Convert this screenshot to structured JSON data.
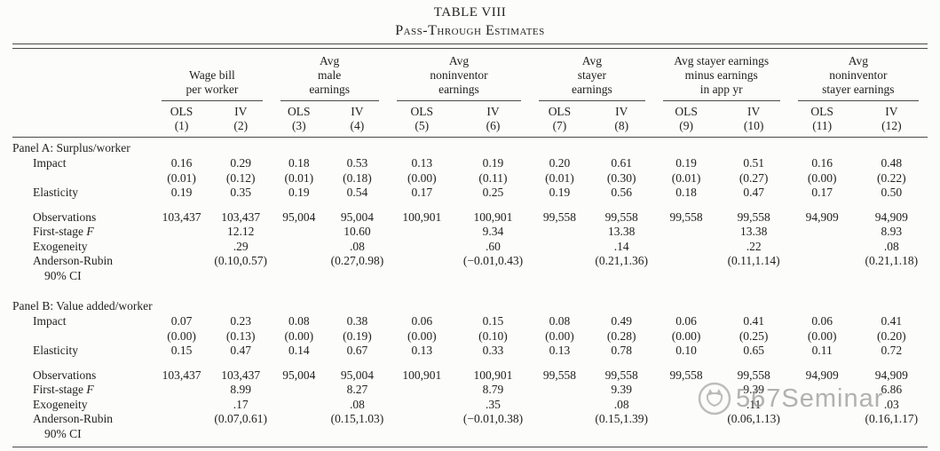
{
  "title": "TABLE VIII",
  "subtitle": "Pass-Through Estimates",
  "watermark": {
    "text": "567Seminar",
    "logo": "cat-circle-icon",
    "color": "#949494"
  },
  "table": {
    "col_groups": [
      {
        "title": "Wage bill\nper worker"
      },
      {
        "title": "Avg\nmale\nearnings"
      },
      {
        "title": "Avg\nnoninventor\nearnings"
      },
      {
        "title": "Avg\nstayer\nearnings"
      },
      {
        "title": "Avg stayer earnings\nminus earnings\nin app yr"
      },
      {
        "title": "Avg\nnoninventor\nstayer earnings"
      }
    ],
    "method_headers": [
      "OLS",
      "IV",
      "OLS",
      "IV",
      "OLS",
      "IV",
      "OLS",
      "IV",
      "OLS",
      "IV",
      "OLS",
      "IV"
    ],
    "column_numbers": [
      "(1)",
      "(2)",
      "(3)",
      "(4)",
      "(5)",
      "(6)",
      "(7)",
      "(8)",
      "(9)",
      "(10)",
      "(11)",
      "(12)"
    ],
    "panels": [
      {
        "title": "Panel A: Surplus/worker",
        "rows": [
          {
            "label": "Impact",
            "values": [
              "0.16",
              "0.29",
              "0.18",
              "0.53",
              "0.13",
              "0.19",
              "0.20",
              "0.61",
              "0.19",
              "0.51",
              "0.16",
              "0.48"
            ]
          },
          {
            "label": "",
            "values": [
              "(0.01)",
              "(0.12)",
              "(0.01)",
              "(0.18)",
              "(0.00)",
              "(0.11)",
              "(0.01)",
              "(0.30)",
              "(0.01)",
              "(0.27)",
              "(0.00)",
              "(0.22)"
            ]
          },
          {
            "label": "Elasticity",
            "values": [
              "0.19",
              "0.35",
              "0.19",
              "0.54",
              "0.17",
              "0.25",
              "0.19",
              "0.56",
              "0.18",
              "0.47",
              "0.17",
              "0.50"
            ]
          },
          {
            "spacer": true
          },
          {
            "label": "Observations",
            "values": [
              "103,437",
              "103,437",
              "95,004",
              "95,004",
              "100,901",
              "100,901",
              "99,558",
              "99,558",
              "99,558",
              "99,558",
              "94,909",
              "94,909"
            ]
          },
          {
            "label": "First-stage ",
            "label_italic": "F",
            "values": [
              "",
              "12.12",
              "",
              "10.60",
              "",
              "9.34",
              "",
              "13.38",
              "",
              "13.38",
              "",
              "8.93"
            ]
          },
          {
            "label": "Exogeneity",
            "values": [
              "",
              ".29",
              "",
              ".08",
              "",
              ".60",
              "",
              ".14",
              "",
              ".22",
              "",
              ".08"
            ]
          },
          {
            "label": "Anderson-Rubin",
            "label2": "90% CI",
            "values": [
              "",
              "(0.10,0.57)",
              "",
              "(0.27,0.98)",
              "",
              "(−0.01,0.43)",
              "",
              "(0.21,1.36)",
              "",
              "(0.11,1.14)",
              "",
              "(0.21,1.18)"
            ]
          }
        ]
      },
      {
        "title": "Panel B: Value added/worker",
        "rows": [
          {
            "label": "Impact",
            "values": [
              "0.07",
              "0.23",
              "0.08",
              "0.38",
              "0.06",
              "0.15",
              "0.08",
              "0.49",
              "0.06",
              "0.41",
              "0.06",
              "0.41"
            ]
          },
          {
            "label": "",
            "values": [
              "(0.00)",
              "(0.13)",
              "(0.00)",
              "(0.19)",
              "(0.00)",
              "(0.10)",
              "(0.00)",
              "(0.28)",
              "(0.00)",
              "(0.25)",
              "(0.00)",
              "(0.20)"
            ]
          },
          {
            "label": "Elasticity",
            "values": [
              "0.15",
              "0.47",
              "0.14",
              "0.67",
              "0.13",
              "0.33",
              "0.13",
              "0.78",
              "0.10",
              "0.65",
              "0.11",
              "0.72"
            ]
          },
          {
            "spacer": true
          },
          {
            "label": "Observations",
            "values": [
              "103,437",
              "103,437",
              "95,004",
              "95,004",
              "100,901",
              "100,901",
              "99,558",
              "99,558",
              "99,558",
              "99,558",
              "94,909",
              "94,909"
            ]
          },
          {
            "label": "First-stage ",
            "label_italic": "F",
            "values": [
              "",
              "8.99",
              "",
              "8.27",
              "",
              "8.79",
              "",
              "9.39",
              "",
              "9.39",
              "",
              "6.86"
            ]
          },
          {
            "label": "Exogeneity",
            "values": [
              "",
              ".17",
              "",
              ".08",
              "",
              ".35",
              "",
              ".08",
              "",
              ".11",
              "",
              ".03"
            ]
          },
          {
            "label": "Anderson-Rubin",
            "label2": "90% CI",
            "values": [
              "",
              "(0.07,0.61)",
              "",
              "(0.15,1.03)",
              "",
              "(−0.01,0.38)",
              "",
              "(0.15,1.39)",
              "",
              "(0.06,1.13)",
              "",
              "(0.16,1.17)"
            ]
          }
        ]
      }
    ]
  }
}
